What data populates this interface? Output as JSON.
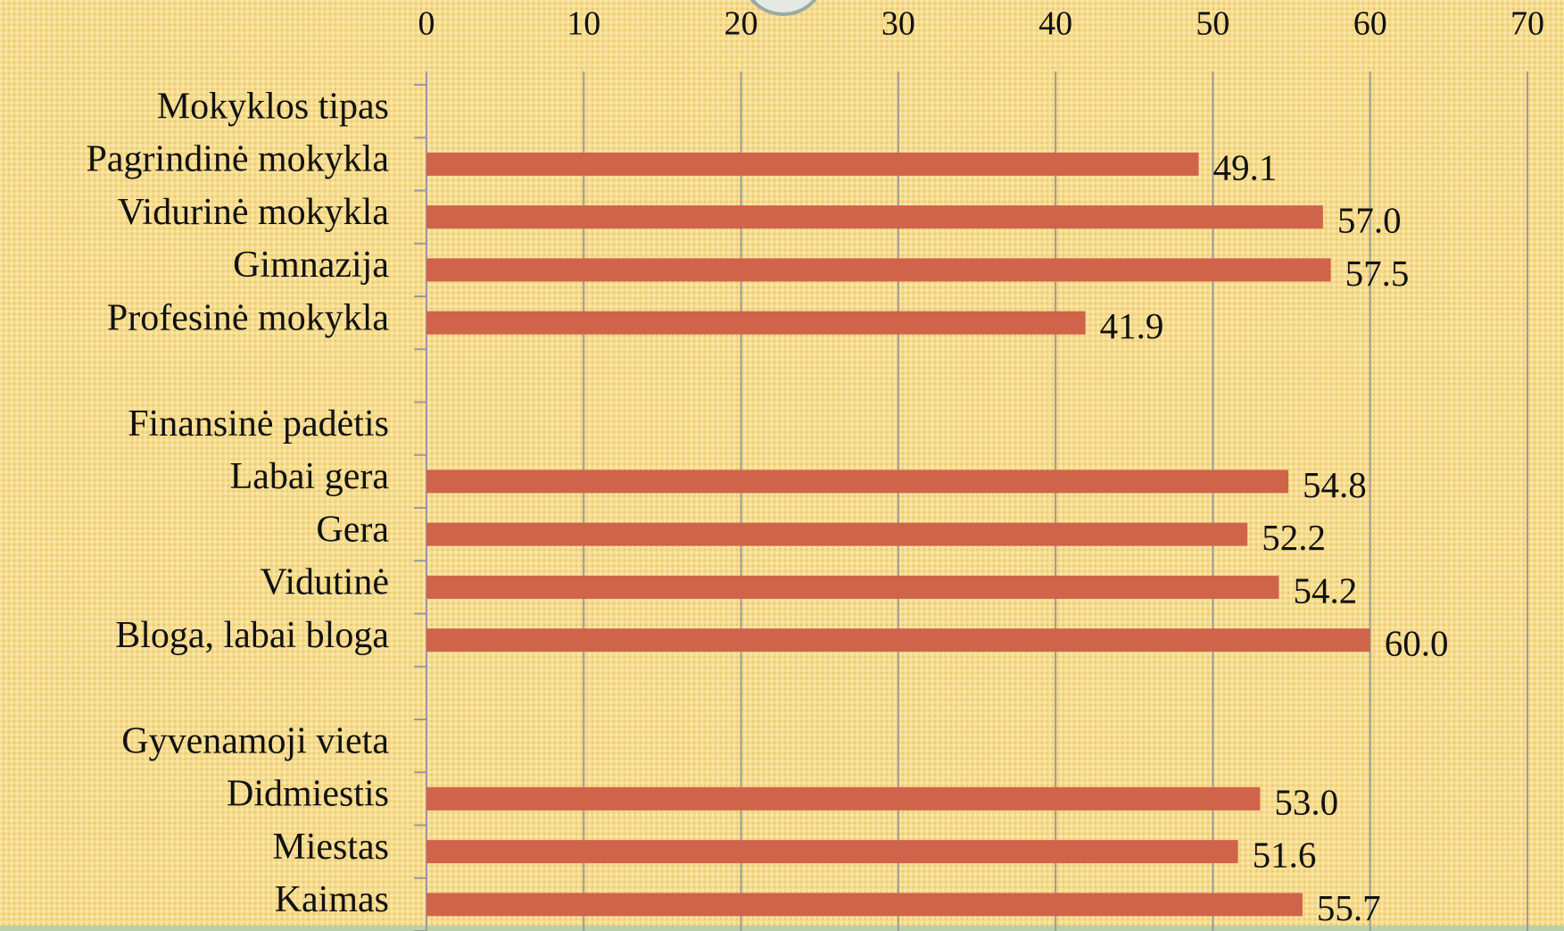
{
  "chart_data": {
    "type": "bar",
    "orientation": "horizontal",
    "color": "#d0644b",
    "categories": [
      "Mokyklos tipas",
      "Pagrindinė mokykla",
      "Vidurinė mokykla",
      "Gimnazija",
      "Profesinė mokykla",
      null,
      "Finansinė padėtis",
      "Labai gera",
      "Gera",
      "Vidutinė",
      "Bloga, labai bloga",
      null,
      "Gyvenamoji vieta",
      "Didmiestis",
      "Miestas",
      "Kaimas"
    ],
    "values": [
      null,
      49.1,
      57.0,
      57.5,
      41.9,
      null,
      null,
      54.8,
      52.2,
      54.2,
      60.0,
      null,
      null,
      53.0,
      51.6,
      55.7
    ],
    "value_labels": [
      null,
      "49.1",
      "57.0",
      "57.5",
      "41.9",
      null,
      null,
      "54.8",
      "52.2",
      "54.2",
      "60.0",
      null,
      null,
      "53.0",
      "51.6",
      "55.7"
    ],
    "xlim": [
      0,
      70
    ],
    "xticks": [
      0,
      10,
      20,
      30,
      40,
      50,
      60,
      70
    ],
    "grid": true
  }
}
